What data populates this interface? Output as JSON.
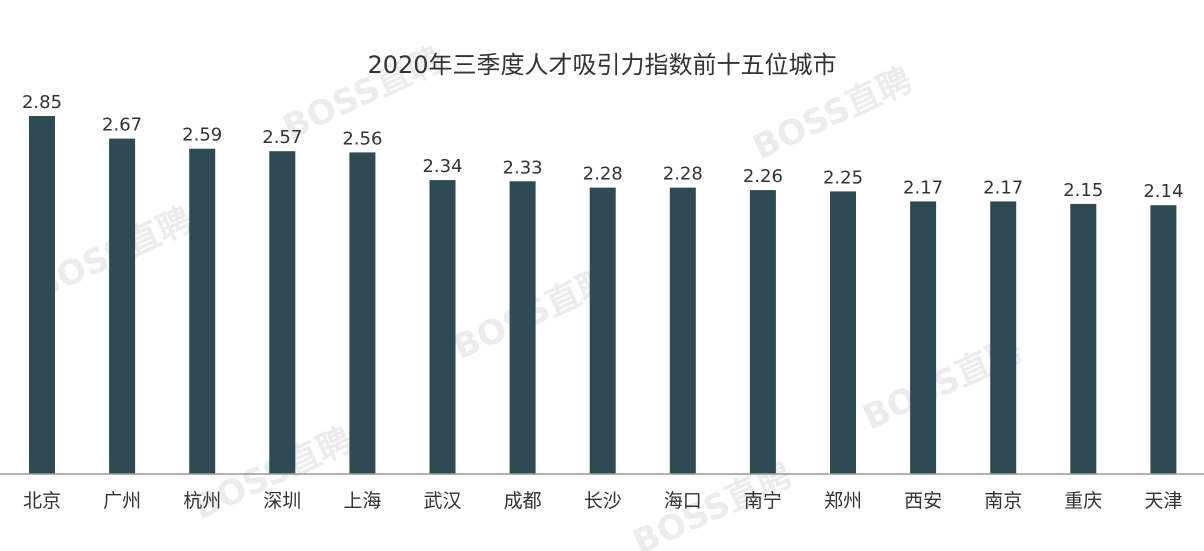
{
  "watermark": "BOSS直聘",
  "chart_data": {
    "type": "bar",
    "title": "2020年三季度人才吸引力指数前十五位城市",
    "xlabel": "",
    "ylabel": "",
    "ylim": [
      0,
      2.85
    ],
    "grid": false,
    "colors": {
      "bar": "#2e4a52",
      "baseline": "#9a9a9a",
      "title": "#333333",
      "label": "#333333"
    },
    "categories": [
      "北京",
      "广州",
      "杭州",
      "深圳",
      "上海",
      "武汉",
      "成都",
      "长沙",
      "海口",
      "南宁",
      "郑州",
      "西安",
      "南京",
      "重庆",
      "天津"
    ],
    "values": [
      2.85,
      2.67,
      2.59,
      2.57,
      2.56,
      2.34,
      2.33,
      2.28,
      2.28,
      2.26,
      2.25,
      2.17,
      2.17,
      2.15,
      2.14
    ],
    "value_labels": [
      "2.85",
      "2.67",
      "2.59",
      "2.57",
      "2.56",
      "2.34",
      "2.33",
      "2.28",
      "2.28",
      "2.26",
      "2.25",
      "2.17",
      "2.17",
      "2.15",
      "2.14"
    ]
  }
}
